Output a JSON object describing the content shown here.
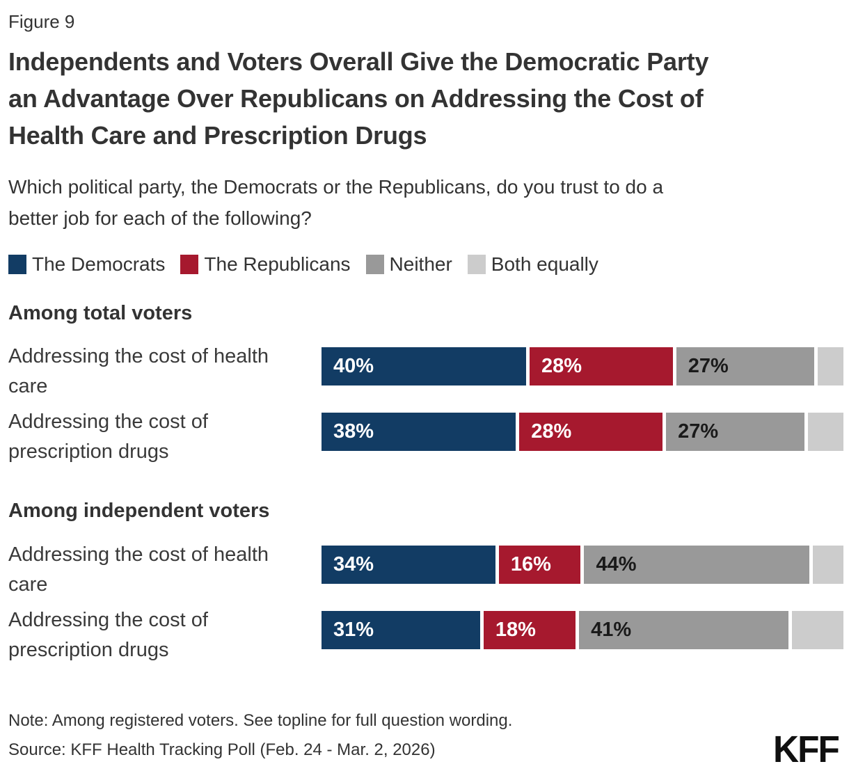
{
  "figure_label": "Figure 9",
  "title_lines": [
    "Independents and Voters Overall Give the Democratic Party",
    "an Advantage Over Republicans on Addressing the Cost of",
    "Health Care and Prescription Drugs"
  ],
  "subtitle_lines": [
    "Which political party, the Democrats or the Republicans, do you trust to do a",
    "better job for each of the following?"
  ],
  "colors": {
    "democrats_blue": "#123C64",
    "republicans_red": "#A6192E",
    "neither_gray": "#999999",
    "both_equally_light_gray": "#CCCCCC",
    "text_dark": "#333333",
    "value_label_on_dark": "#FFFFFF",
    "value_label_on_gray": "#1A1A1A"
  },
  "legend": {
    "items": [
      {
        "name": "The Democrats",
        "color": "#123C64"
      },
      {
        "name": "The Republicans",
        "color": "#A6192E"
      },
      {
        "name": "Neither",
        "color": "#999999"
      },
      {
        "name": "Both equally",
        "color": "#CCCCCC"
      }
    ]
  },
  "chart_data": {
    "type": "bar",
    "subtype": "horizontal-stacked",
    "unit": "percent",
    "xlim": [
      0,
      100
    ],
    "legend_position": "top",
    "grid": false,
    "series": [
      {
        "name": "The Democrats",
        "color": "#123C64",
        "label_color": "#FFFFFF"
      },
      {
        "name": "The Republicans",
        "color": "#A6192E",
        "label_color": "#FFFFFF"
      },
      {
        "name": "Neither",
        "color": "#999999",
        "label_color": "#1A1A1A"
      },
      {
        "name": "Both equally",
        "color": "#CCCCCC",
        "label_color": null
      }
    ],
    "groups": [
      {
        "heading": "Among total voters",
        "rows": [
          {
            "label": "Addressing the cost of health care",
            "label_lines": [
              "Addressing the cost of health",
              "care"
            ],
            "segments": [
              {
                "series": "The Democrats",
                "value": 40,
                "label": "40%"
              },
              {
                "series": "The Republicans",
                "value": 28,
                "label": "28%"
              },
              {
                "series": "Neither",
                "value": 27,
                "label": "27%"
              },
              {
                "series": "Both equally",
                "value": 5,
                "label": null
              }
            ]
          },
          {
            "label": "Addressing the cost of prescription drugs",
            "label_lines": [
              "Addressing the cost of",
              "prescription drugs"
            ],
            "segments": [
              {
                "series": "The Democrats",
                "value": 38,
                "label": "38%"
              },
              {
                "series": "The Republicans",
                "value": 28,
                "label": "28%"
              },
              {
                "series": "Neither",
                "value": 27,
                "label": "27%"
              },
              {
                "series": "Both equally",
                "value": 7,
                "label": null
              }
            ]
          }
        ]
      },
      {
        "heading": "Among independent voters",
        "rows": [
          {
            "label": "Addressing the cost of health care",
            "label_lines": [
              "Addressing the cost of health",
              "care"
            ],
            "segments": [
              {
                "series": "The Democrats",
                "value": 34,
                "label": "34%"
              },
              {
                "series": "The Republicans",
                "value": 16,
                "label": "16%"
              },
              {
                "series": "Neither",
                "value": 44,
                "label": "44%"
              },
              {
                "series": "Both equally",
                "value": 6,
                "label": null
              }
            ]
          },
          {
            "label": "Addressing the cost of prescription drugs",
            "label_lines": [
              "Addressing the cost of",
              "prescription drugs"
            ],
            "segments": [
              {
                "series": "The Democrats",
                "value": 31,
                "label": "31%"
              },
              {
                "series": "The Republicans",
                "value": 18,
                "label": "18%"
              },
              {
                "series": "Neither",
                "value": 41,
                "label": "41%"
              },
              {
                "series": "Both equally",
                "value": 10,
                "label": null
              }
            ]
          }
        ]
      }
    ]
  },
  "footer": {
    "note": "Note: Among registered voters. See topline for full question wording.",
    "source": "Source: KFF Health Tracking Poll (Feb. 24 - Mar. 2, 2026)",
    "logo": "KFF"
  }
}
